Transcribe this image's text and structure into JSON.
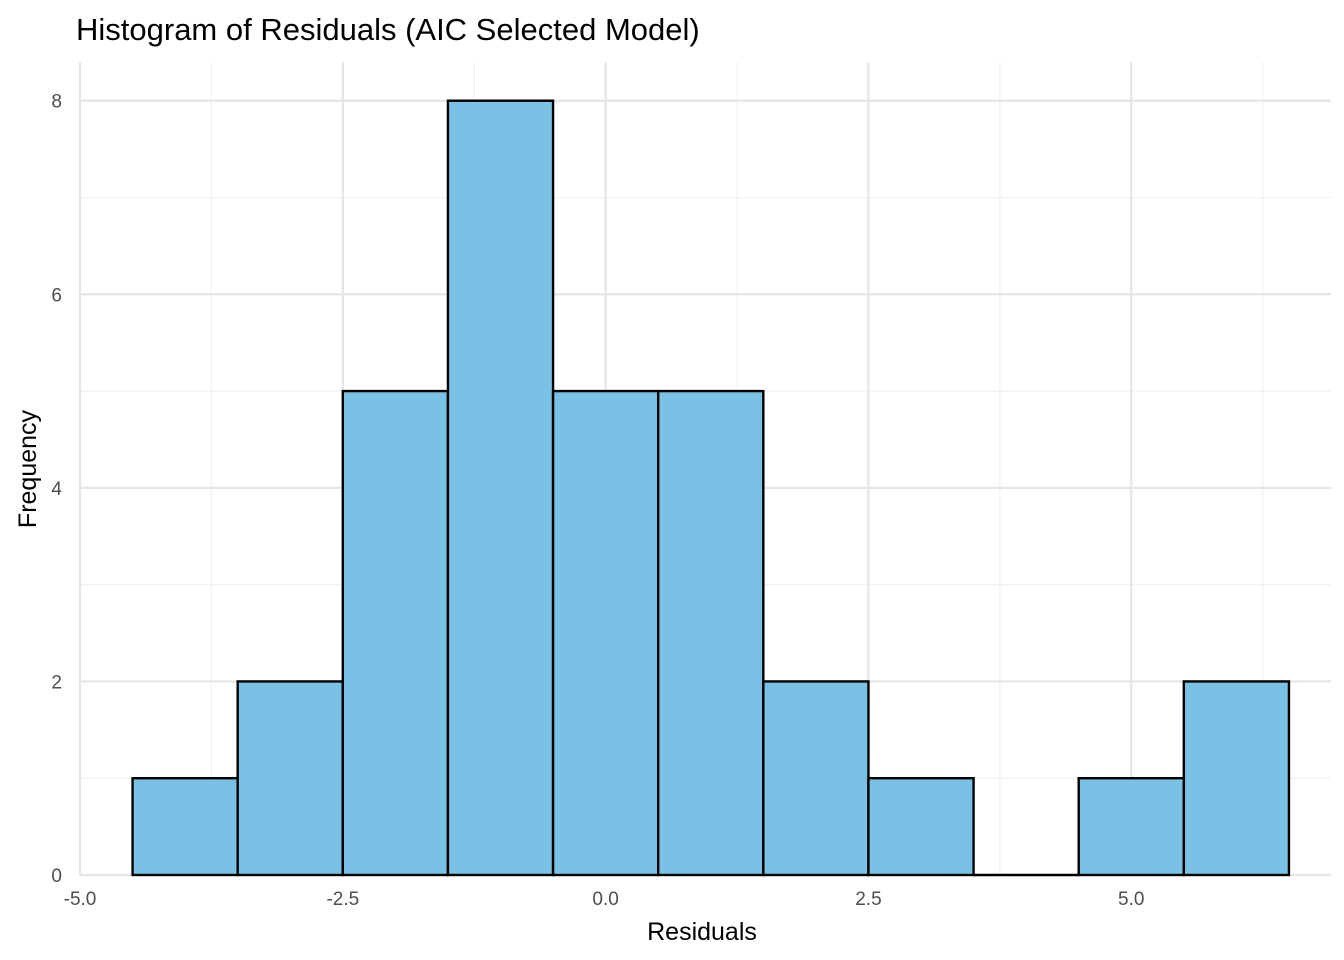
{
  "chart_data": {
    "type": "histogram",
    "title": "Histogram of Residuals (AIC Selected Model)",
    "xlabel": "Residuals",
    "ylabel": "Frequency",
    "bin_width": 1,
    "bins": [
      {
        "from": -4.5,
        "to": -3.5,
        "count": 1
      },
      {
        "from": -3.5,
        "to": -2.5,
        "count": 2
      },
      {
        "from": -2.5,
        "to": -1.5,
        "count": 5
      },
      {
        "from": -1.5,
        "to": -0.5,
        "count": 8
      },
      {
        "from": -0.5,
        "to": 0.5,
        "count": 5
      },
      {
        "from": 0.5,
        "to": 1.5,
        "count": 5
      },
      {
        "from": 1.5,
        "to": 2.5,
        "count": 2
      },
      {
        "from": 2.5,
        "to": 3.5,
        "count": 1
      },
      {
        "from": 3.5,
        "to": 4.5,
        "count": 0
      },
      {
        "from": 4.5,
        "to": 5.5,
        "count": 1
      },
      {
        "from": 5.5,
        "to": 6.5,
        "count": 2
      }
    ],
    "xlim": [
      -5.0,
      6.9
    ],
    "ylim": [
      0,
      8.4
    ],
    "x_ticks": [
      -5.0,
      -2.5,
      0.0,
      2.5,
      5.0
    ],
    "x_tick_labels": [
      "-5.0",
      "-2.5",
      "0.0",
      "2.5",
      "5.0"
    ],
    "y_ticks": [
      0,
      2,
      4,
      6,
      8
    ],
    "y_tick_labels": [
      "0",
      "2",
      "4",
      "6",
      "8"
    ],
    "grid": true,
    "fill_color": "#7ac2e5",
    "edge_color": "#000000"
  }
}
